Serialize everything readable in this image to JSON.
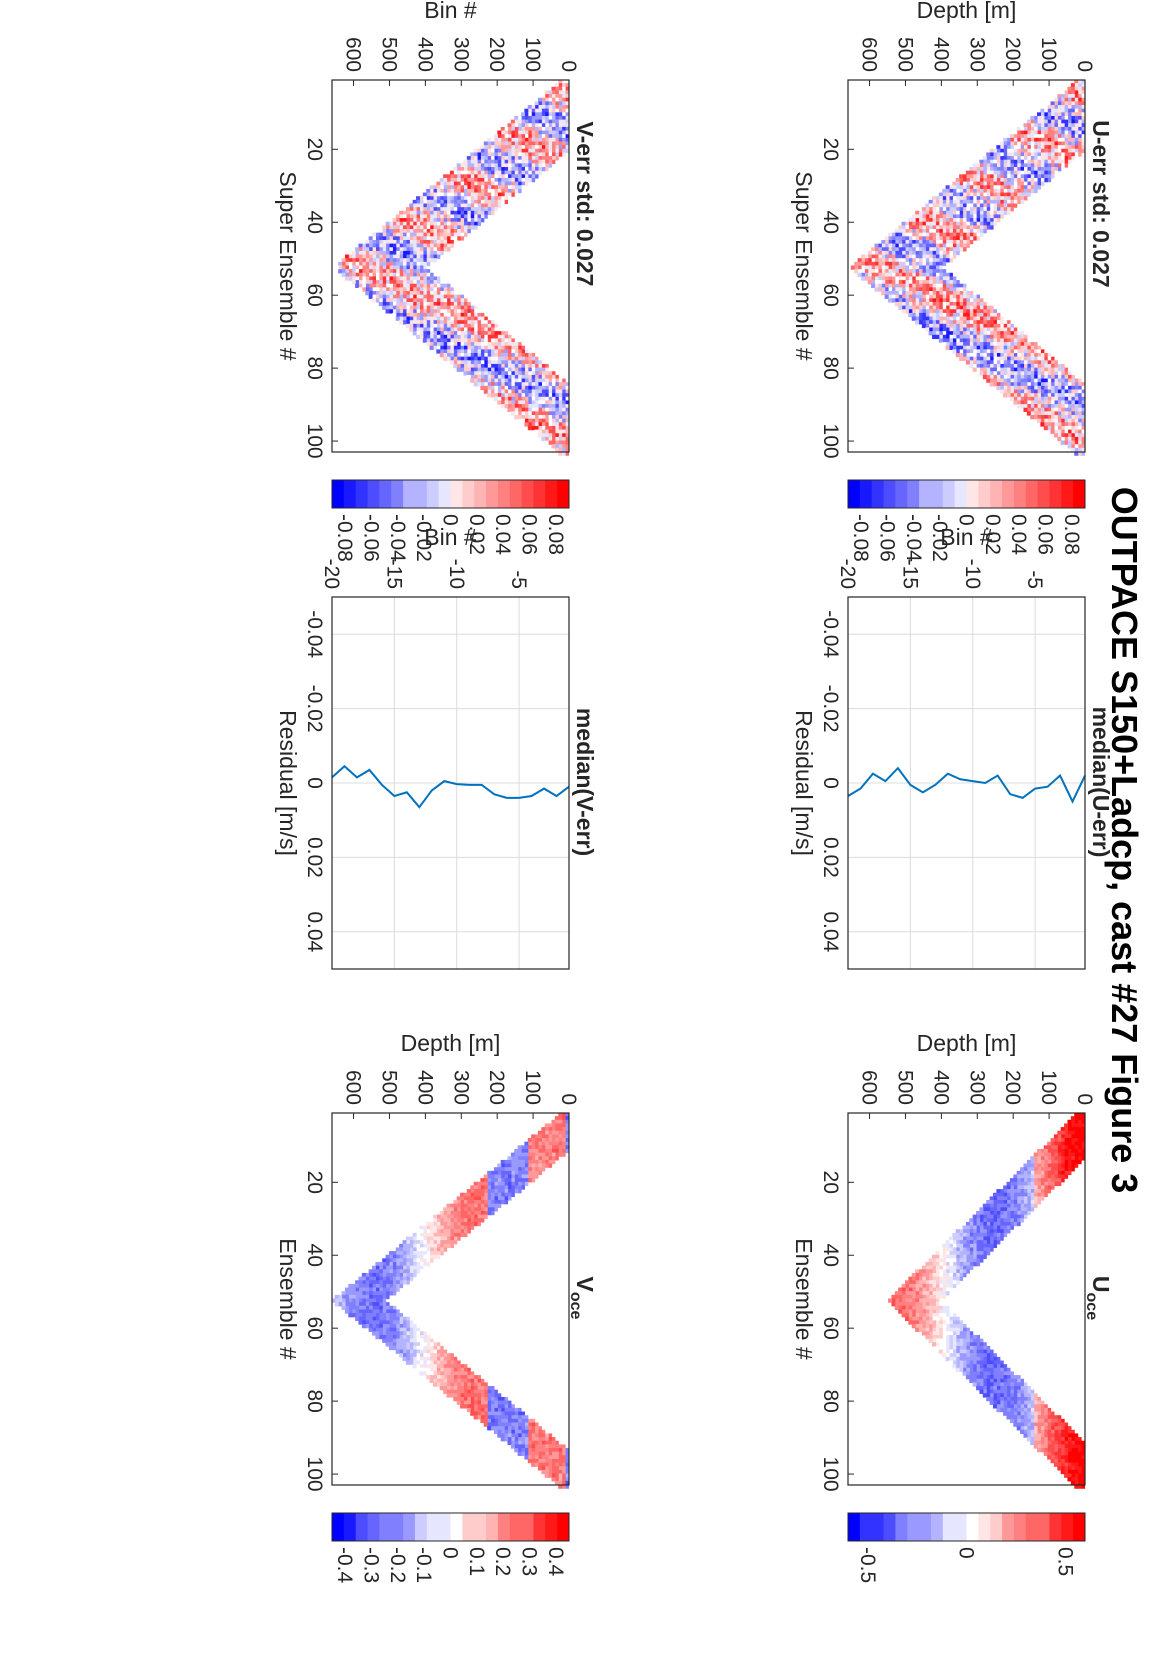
{
  "figure_title": "OUTPACE S150+Ladcp, cast #27  Figure 3",
  "colors": {
    "accent": "#0072BD",
    "positive": "#FF0000",
    "negative": "#0000FF",
    "zero": "#FFFFFF"
  },
  "chart_data": [
    {
      "id": "u_err",
      "type": "heatmap",
      "title": "U-err std: 0.027",
      "xlabel": "Super Ensemble #",
      "ylabel": "Depth [m]",
      "xlim": [
        1,
        103
      ],
      "ylim": [
        0,
        660
      ],
      "y_reversed": true,
      "xticks": [
        "20",
        "40",
        "60",
        "80",
        "100"
      ],
      "yticks": [
        "0",
        "100",
        "200",
        "300",
        "400",
        "500",
        "600"
      ],
      "colorbar": {
        "range": [
          -0.09,
          0.09
        ],
        "labels": [
          "0.08",
          "0.06",
          "0.04",
          "0.02",
          "0",
          "-0.02",
          "-0.04",
          "-0.06",
          "-0.08"
        ]
      },
      "pattern": {
        "max_depth": 650,
        "deepest_ensemble": 52,
        "amplitude": 0.05
      },
      "grid": false
    },
    {
      "id": "u_med",
      "type": "line",
      "title": "median(U-err)",
      "xlabel": "Residual [m/s]",
      "ylabel": "Bin #",
      "xlim": [
        -0.05,
        0.05
      ],
      "ylim": [
        -20,
        -1
      ],
      "xticks": [
        "-0.04",
        "-0.02",
        "0",
        "0.02",
        "0.04"
      ],
      "yticks": [
        "-5",
        "-10",
        "-15",
        "-20"
      ],
      "grid": true,
      "series": [
        {
          "bins": [
            -1,
            -2,
            -3,
            -4,
            -5,
            -6,
            -7,
            -8,
            -9,
            -10,
            -11,
            -12,
            -13,
            -14,
            -15,
            -16,
            -17,
            -18,
            -19,
            -20
          ],
          "values": [
            -0.002,
            0.005,
            -0.002,
            0.001,
            0.0015,
            0.004,
            0.003,
            -0.002,
            0.0,
            -0.0005,
            -0.001,
            -0.0025,
            0.0005,
            0.0025,
            0.0005,
            -0.004,
            -0.0005,
            -0.0025,
            0.0015,
            0.0035
          ]
        }
      ]
    },
    {
      "id": "u_oce",
      "type": "heatmap",
      "title": "U",
      "title_sub": "oce",
      "xlabel": "Ensemble #",
      "ylabel": "Depth [m]",
      "xlim": [
        1,
        103
      ],
      "ylim": [
        0,
        660
      ],
      "y_reversed": true,
      "xticks": [
        "20",
        "40",
        "60",
        "80",
        "100"
      ],
      "yticks": [
        "0",
        "100",
        "200",
        "300",
        "400",
        "500",
        "600"
      ],
      "colorbar": {
        "range": [
          -0.6,
          0.6
        ],
        "labels": [
          "0.5",
          "0",
          "-0.5"
        ]
      },
      "pattern": {
        "max_depth": 545,
        "deepest_ensemble": 52,
        "amplitude": 0.35
      },
      "grid": false
    },
    {
      "id": "v_err",
      "type": "heatmap",
      "title": "V-err std: 0.027",
      "xlabel": "Super Ensemble #",
      "ylabel": "Bin #",
      "xlim": [
        1,
        103
      ],
      "ylim": [
        0,
        660
      ],
      "y_reversed": true,
      "xticks": [
        "20",
        "40",
        "60",
        "80",
        "100"
      ],
      "yticks": [
        "0",
        "100",
        "200",
        "300",
        "400",
        "500",
        "600"
      ],
      "colorbar": {
        "range": [
          -0.09,
          0.09
        ],
        "labels": [
          "0.08",
          "0.06",
          "0.04",
          "0.02",
          "0",
          "-0.02",
          "-0.04",
          "-0.06",
          "-0.08"
        ]
      },
      "pattern": {
        "max_depth": 650,
        "deepest_ensemble": 52,
        "amplitude": 0.05
      },
      "grid": false
    },
    {
      "id": "v_med",
      "type": "line",
      "title": "median(V-err)",
      "xlabel": "Residual [m/s]",
      "ylabel": "Bin #",
      "xlim": [
        -0.05,
        0.05
      ],
      "ylim": [
        -20,
        -1
      ],
      "xticks": [
        "-0.04",
        "-0.02",
        "0",
        "0.02",
        "0.04"
      ],
      "yticks": [
        "-5",
        "-10",
        "-15",
        "-20"
      ],
      "grid": true,
      "series": [
        {
          "bins": [
            -1,
            -2,
            -3,
            -4,
            -5,
            -6,
            -7,
            -8,
            -9,
            -10,
            -11,
            -12,
            -13,
            -14,
            -15,
            -16,
            -17,
            -18,
            -19,
            -20
          ],
          "values": [
            0.001,
            0.0035,
            0.0015,
            0.0035,
            0.004,
            0.004,
            0.003,
            0.0005,
            0.0005,
            0.0003,
            -0.0005,
            0.002,
            0.0065,
            0.0025,
            0.0035,
            0.0005,
            -0.0035,
            -0.0015,
            -0.0045,
            -0.0015
          ]
        }
      ]
    },
    {
      "id": "v_oce",
      "type": "heatmap",
      "title": "V",
      "title_sub": "oce",
      "xlabel": "Ensemble #",
      "ylabel": "Depth [m]",
      "xlim": [
        1,
        103
      ],
      "ylim": [
        0,
        660
      ],
      "y_reversed": true,
      "xticks": [
        "20",
        "40",
        "60",
        "80",
        "100"
      ],
      "yticks": [
        "0",
        "100",
        "200",
        "300",
        "400",
        "500",
        "600"
      ],
      "colorbar": {
        "range": [
          -0.45,
          0.45
        ],
        "labels": [
          "0.4",
          "0.3",
          "0.2",
          "0.1",
          "0",
          "-0.1",
          "-0.2",
          "-0.3",
          "-0.4"
        ]
      },
      "pattern": {
        "max_depth": 655,
        "deepest_ensemble": 52,
        "amplitude": 0.25
      },
      "grid": false
    }
  ]
}
